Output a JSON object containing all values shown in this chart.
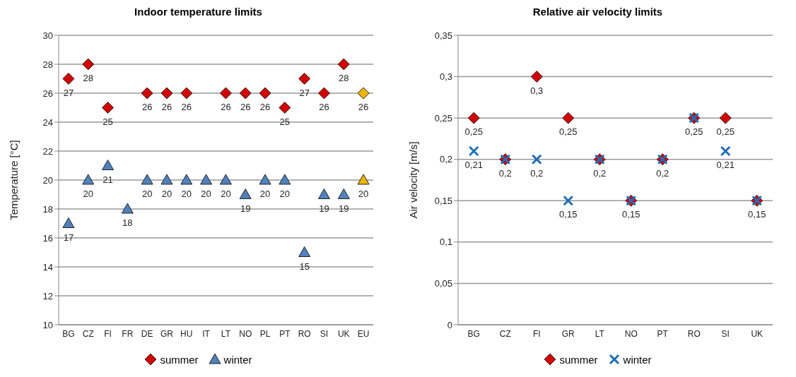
{
  "chart_data": [
    {
      "type": "scatter",
      "title": "Indoor temperature limits",
      "ylabel": "Temperature [°C]",
      "categories": [
        "BG",
        "CZ",
        "FI",
        "FR",
        "DE",
        "GR",
        "HU",
        "IT",
        "LT",
        "NO",
        "PL",
        "PT",
        "RO",
        "SI",
        "UK",
        "EU"
      ],
      "series": [
        {
          "name": "summer",
          "marker": "diamond",
          "color": "#d40000",
          "colors": [
            "#d40000",
            "#d40000",
            "#d40000",
            null,
            "#d40000",
            "#d40000",
            "#d40000",
            null,
            "#d40000",
            "#d40000",
            "#d40000",
            "#d40000",
            "#d40000",
            "#d40000",
            "#d40000",
            "#f0b400"
          ],
          "values": [
            27,
            28,
            25,
            null,
            26,
            26,
            26,
            null,
            26,
            26,
            26,
            25,
            27,
            26,
            28,
            26
          ]
        },
        {
          "name": "winter",
          "marker": "triangle",
          "color": "#4f81bd",
          "colors": [
            "#4f81bd",
            "#4f81bd",
            "#4f81bd",
            "#4f81bd",
            "#4f81bd",
            "#4f81bd",
            "#4f81bd",
            "#4f81bd",
            "#4f81bd",
            "#4f81bd",
            "#4f81bd",
            "#4f81bd",
            "#4f81bd",
            "#4f81bd",
            "#4f81bd",
            "#f0b400"
          ],
          "values": [
            17,
            20,
            21,
            18,
            20,
            20,
            20,
            20,
            20,
            19,
            20,
            20,
            15,
            19,
            19,
            20
          ]
        }
      ],
      "ylim": [
        10,
        30
      ],
      "yticks": [
        10,
        12,
        14,
        16,
        18,
        20,
        22,
        24,
        26,
        28,
        30
      ],
      "grid": "y",
      "legend": "bottom",
      "data_labels": true
    },
    {
      "type": "scatter",
      "title": "Relative air velocity limits",
      "ylabel": "Air velocity [m/s]",
      "categories": [
        "BG",
        "CZ",
        "FI",
        "GR",
        "LT",
        "NO",
        "PT",
        "RO",
        "SI",
        "UK"
      ],
      "series": [
        {
          "name": "summer",
          "marker": "diamond",
          "color": "#d40000",
          "values": [
            0.25,
            0.2,
            0.3,
            0.25,
            0.2,
            0.15,
            0.2,
            0.25,
            0.25,
            0.15
          ],
          "value_labels": [
            "0,25",
            "0,2",
            "0,3",
            "0,25",
            "0,2",
            "0,15",
            "0,2",
            "0,25",
            "0,25",
            "0,15"
          ]
        },
        {
          "name": "winter",
          "marker": "cross",
          "color": "#1f6fb8",
          "values": [
            0.21,
            0.2,
            0.2,
            0.15,
            0.2,
            0.15,
            0.2,
            0.25,
            0.21,
            0.15
          ],
          "value_labels": [
            "0,21",
            null,
            "0,2",
            "0,15",
            null,
            null,
            null,
            null,
            "0,21",
            null
          ]
        }
      ],
      "ylim": [
        0,
        0.35
      ],
      "yticks": [
        0,
        {
          "value": 0.05,
          "label": "0,05"
        },
        {
          "value": 0.1,
          "label": "0,1"
        },
        {
          "value": 0.15,
          "label": "0,15"
        },
        {
          "value": 0.2,
          "label": "0,2"
        },
        {
          "value": 0.25,
          "label": "0,25"
        },
        {
          "value": 0.3,
          "label": "0,3"
        },
        {
          "value": 0.35,
          "label": "0,35"
        }
      ],
      "grid": "y",
      "legend": "bottom"
    }
  ]
}
